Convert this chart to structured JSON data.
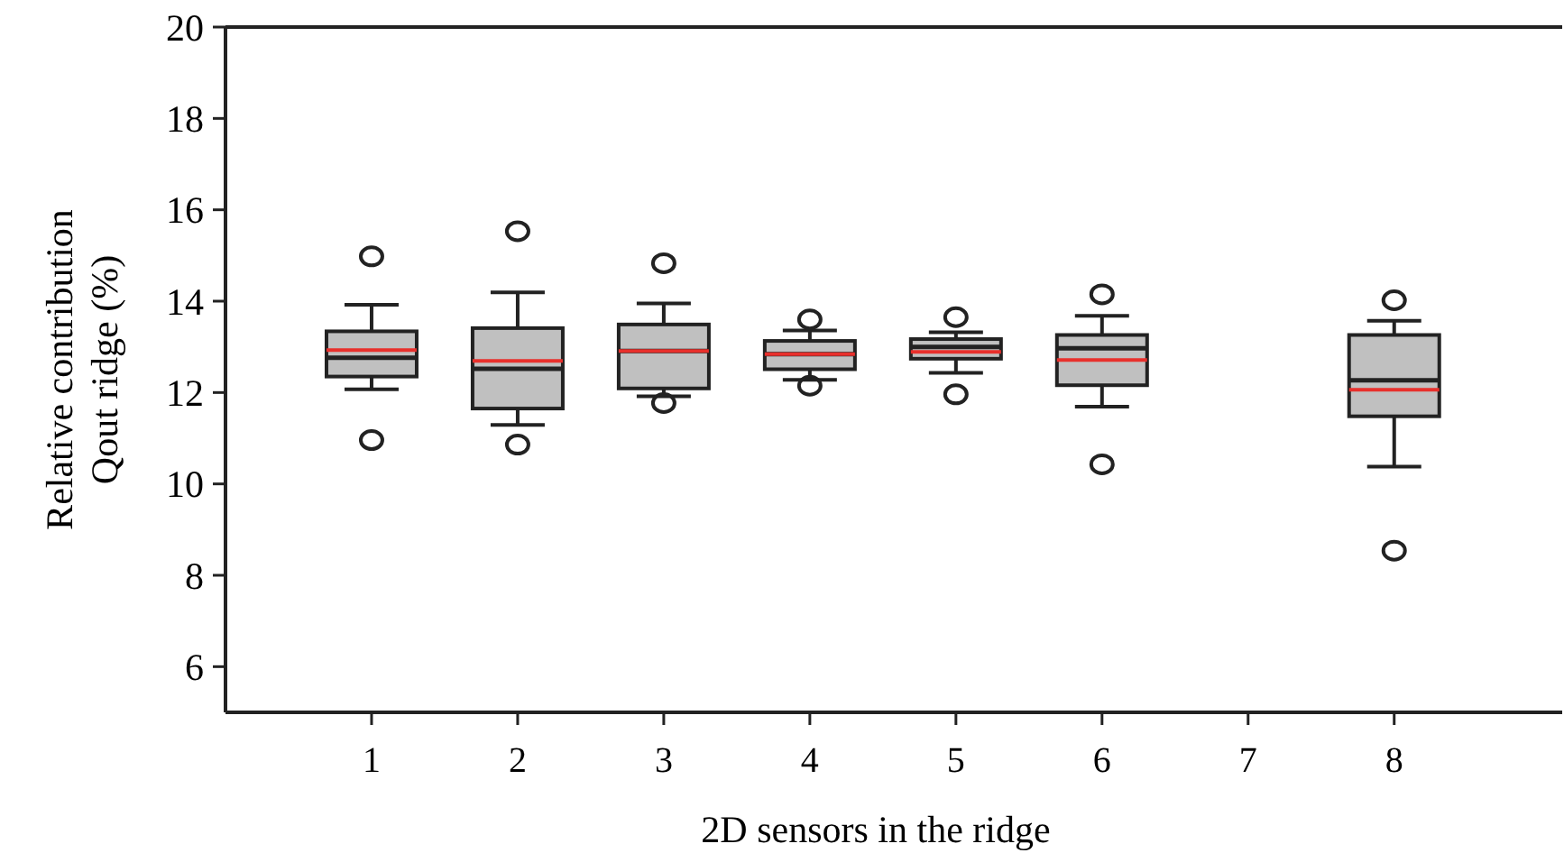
{
  "chart_data": {
    "type": "box",
    "xlabel": "2D sensors in the ridge",
    "ylabel": "Relative contribution\nQout ridge (%)",
    "categories": [
      "1",
      "2",
      "3",
      "4",
      "5",
      "6",
      "7",
      "8"
    ],
    "ylim": [
      5,
      20
    ],
    "yticks": [
      6,
      8,
      10,
      12,
      14,
      16,
      18,
      20
    ],
    "grid": false,
    "color": "#c0c0c0",
    "boxes": [
      {
        "low": 12.07,
        "q1": 12.35,
        "median": 12.76,
        "q3": 13.34,
        "high": 13.92,
        "mean": 12.93,
        "outliers": [
          14.98,
          10.96
        ]
      },
      {
        "low": 11.29,
        "q1": 11.65,
        "median": 12.52,
        "q3": 13.41,
        "high": 14.19,
        "mean": 12.69,
        "outliers": [
          15.53,
          10.86
        ]
      },
      {
        "low": 11.92,
        "q1": 12.09,
        "median": 12.91,
        "q3": 13.49,
        "high": 13.95,
        "mean": 12.91,
        "outliers": [
          14.83,
          11.77
        ]
      },
      {
        "low": 12.28,
        "q1": 12.51,
        "median": 12.84,
        "q3": 13.13,
        "high": 13.36,
        "mean": 12.84,
        "outliers": [
          13.6,
          12.15
        ]
      },
      {
        "low": 12.43,
        "q1": 12.74,
        "median": 13.0,
        "q3": 13.17,
        "high": 13.32,
        "mean": 12.89,
        "outliers": [
          13.65,
          11.96
        ]
      },
      {
        "low": 11.69,
        "q1": 12.16,
        "median": 12.97,
        "q3": 13.26,
        "high": 13.68,
        "mean": 12.71,
        "outliers": [
          14.15,
          10.43
        ]
      },
      null,
      {
        "low": 10.38,
        "q1": 11.48,
        "median": 12.27,
        "q3": 13.26,
        "high": 13.57,
        "mean": 12.06,
        "outliers": [
          14.02,
          8.54
        ]
      }
    ]
  }
}
